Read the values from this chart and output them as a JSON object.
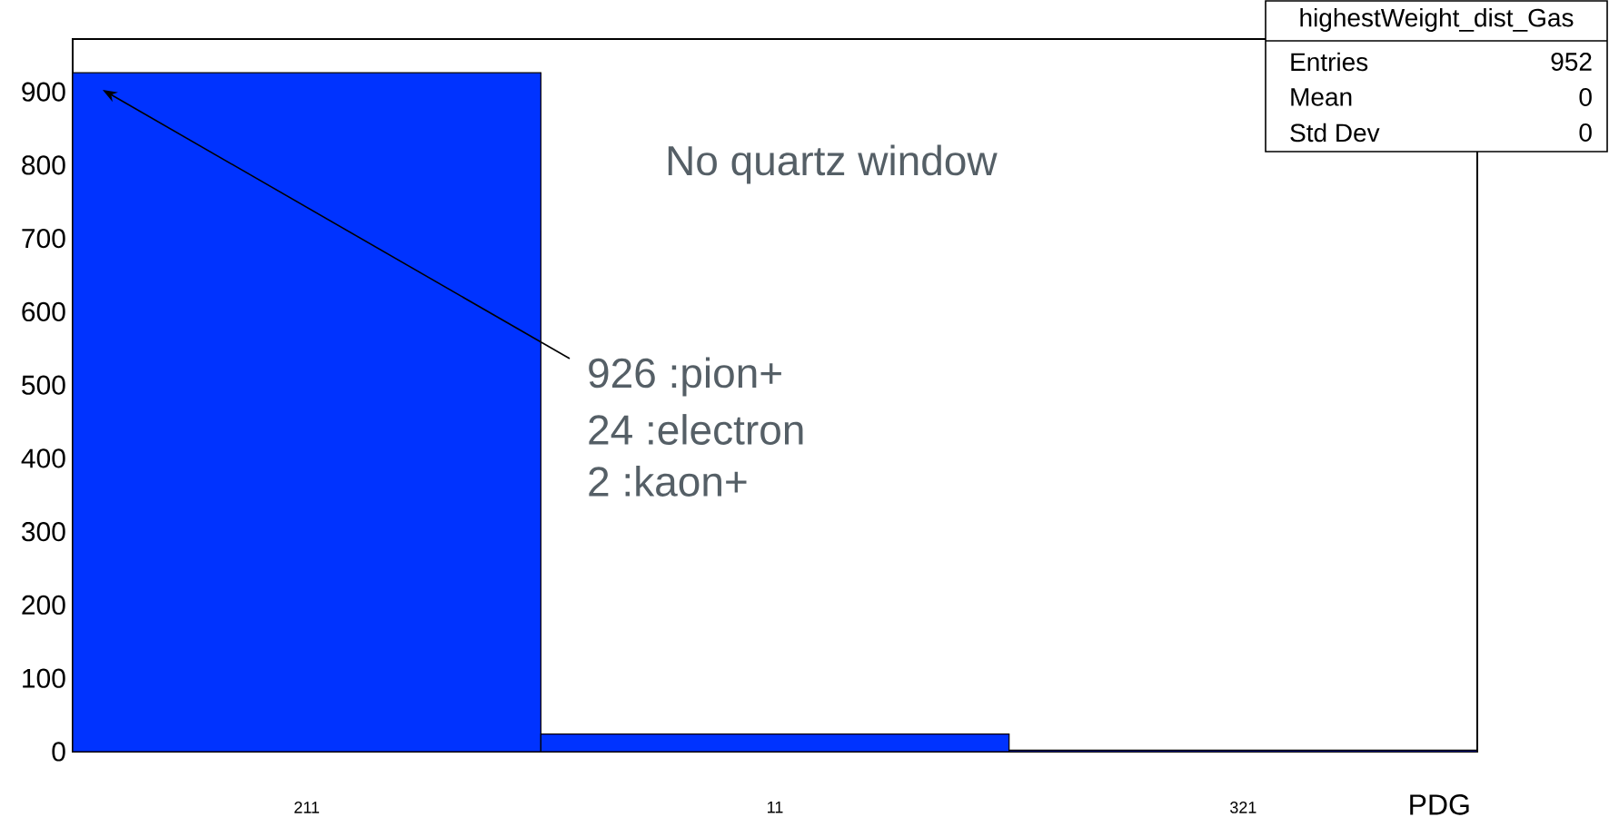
{
  "chart_data": {
    "type": "bar",
    "categories": [
      "211",
      "11",
      "321"
    ],
    "values": [
      926,
      24,
      2
    ],
    "color": "#0033ff",
    "xlabel": "PDG",
    "ylim": [
      0,
      972
    ],
    "yticks": [
      0,
      100,
      200,
      300,
      400,
      500,
      600,
      700,
      800,
      900
    ],
    "annotations": [
      "No  quartz window",
      "926 :pion+",
      "24 :electron",
      "2 :kaon+",
      "highestWeight_dist_Gas",
      "Entries",
      "952",
      "Mean",
      "0",
      "Std Dev",
      "0"
    ]
  }
}
